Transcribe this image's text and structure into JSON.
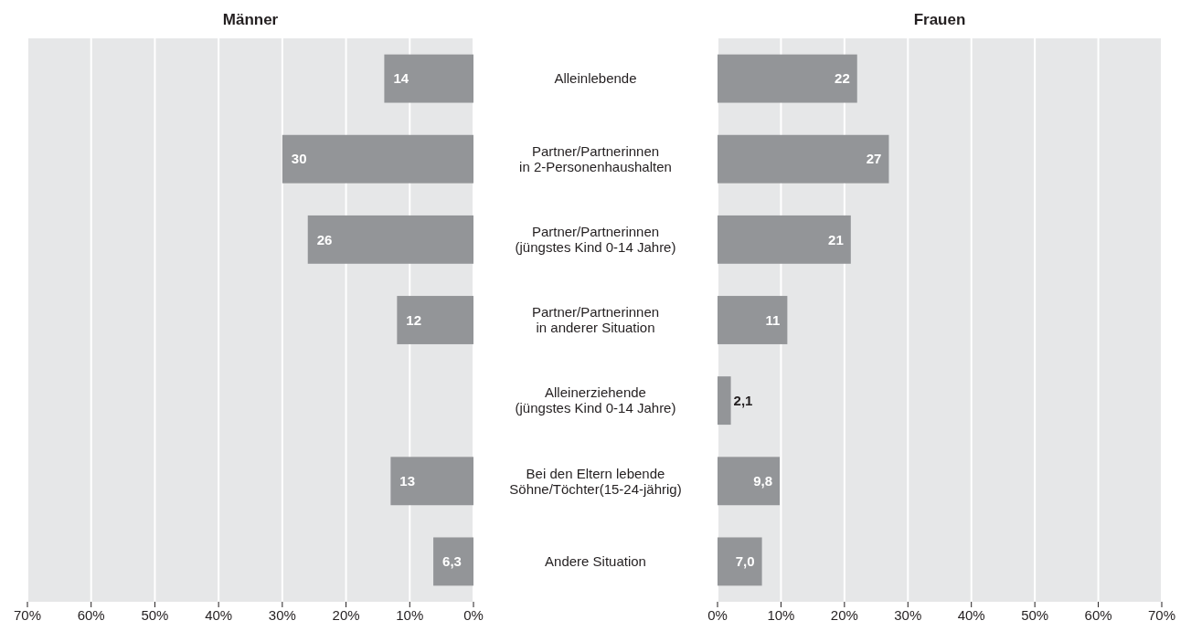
{
  "chart_data": [
    {
      "type": "bar",
      "orientation": "horizontal",
      "title": "Männer",
      "categories": [
        "Alleinlebende",
        "Partner/Partnerinnen\nin 2-Personenhaushalten",
        "Partner/Partnerinnen\n(jüngstes Kind 0-14 Jahre)",
        "Partner/Partnerinnen\nin anderer Situation",
        "Alleinerziehende\n(jüngstes Kind 0-14 Jahre)",
        "Bei den Eltern lebende\nSöhne/Töchter(15-24-jährig)",
        "Andere Situation"
      ],
      "values": [
        14,
        30,
        26,
        12,
        null,
        13,
        6.3
      ],
      "value_labels": [
        "14",
        "30",
        "26",
        "12",
        null,
        "13",
        "6,3"
      ],
      "color": "#939598",
      "xlim": [
        70,
        0
      ],
      "xticks": [
        {
          "value": 70,
          "label": "70%"
        },
        {
          "value": 60,
          "label": "60%"
        },
        {
          "value": 50,
          "label": "50%"
        },
        {
          "value": 40,
          "label": "40%"
        },
        {
          "value": 30,
          "label": "30%"
        },
        {
          "value": 20,
          "label": "20%"
        },
        {
          "value": 10,
          "label": "10%"
        },
        {
          "value": 0,
          "label": "0%"
        }
      ],
      "grid": "x"
    },
    {
      "type": "bar",
      "orientation": "horizontal",
      "title": "Frauen",
      "categories": [
        null,
        null,
        null,
        null,
        null,
        null,
        null
      ],
      "values": [
        22,
        27,
        21,
        11,
        2.1,
        9.8,
        7.0
      ],
      "value_labels": [
        "22",
        "27",
        "21",
        "11",
        "2,1",
        "9,8",
        "7,0"
      ],
      "color": "#939598",
      "xlim": [
        0,
        70
      ],
      "xticks": [
        {
          "value": 0,
          "label": "0%"
        },
        {
          "value": 10,
          "label": "10%"
        },
        {
          "value": 20,
          "label": "20%"
        },
        {
          "value": 30,
          "label": "30%"
        },
        {
          "value": 40,
          "label": "40%"
        },
        {
          "value": 50,
          "label": "50%"
        },
        {
          "value": 60,
          "label": "60%"
        },
        {
          "value": 70,
          "label": "70%"
        }
      ],
      "grid": "x",
      "tick_labels": "x"
    }
  ]
}
